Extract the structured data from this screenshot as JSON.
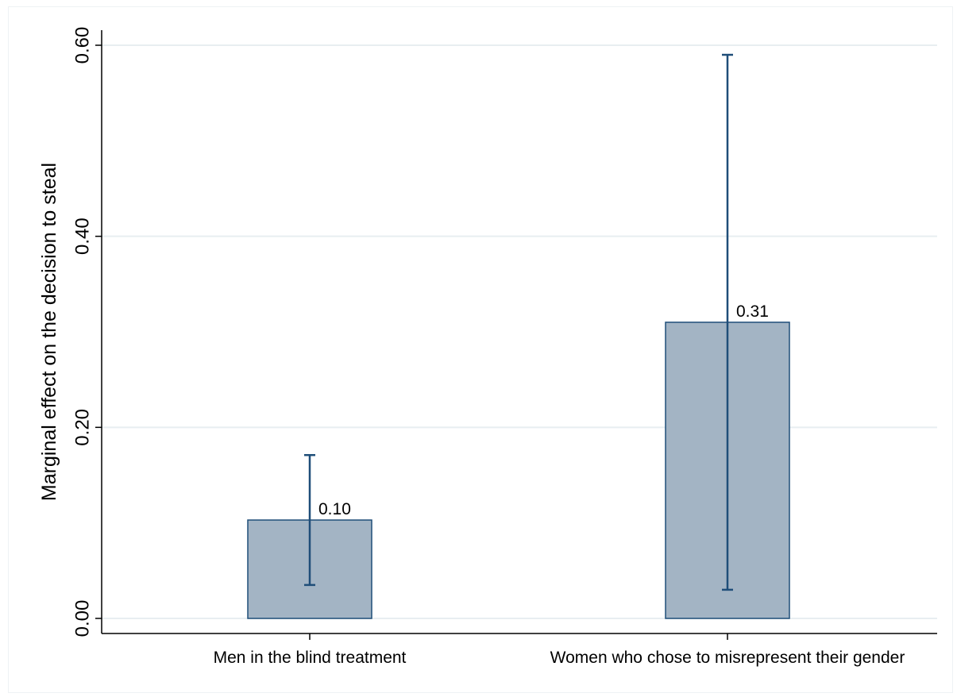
{
  "chart_data": {
    "type": "bar",
    "title": "",
    "xlabel": "",
    "ylabel": "Marginal effect on the decision to steal",
    "ylim": [
      0,
      0.6
    ],
    "yticks": [
      "0.00",
      "0.20",
      "0.40",
      "0.60"
    ],
    "ytick_values": [
      0,
      0.2,
      0.4,
      0.6
    ],
    "grid": true,
    "categories": [
      "Men in the blind treatment",
      "Women who chose to misrepresent their gender"
    ],
    "values": [
      0.103,
      0.31
    ],
    "value_labels": [
      "0.10",
      "0.31"
    ],
    "ci_low": [
      0.035,
      0.03
    ],
    "ci_high": [
      0.171,
      0.59
    ],
    "colors": {
      "bar_fill": "#a3b4c4",
      "bar_stroke": "#1f4e79",
      "error_bar": "#1f4e79",
      "grid": "#e8eef1",
      "axis": "#000000"
    }
  }
}
